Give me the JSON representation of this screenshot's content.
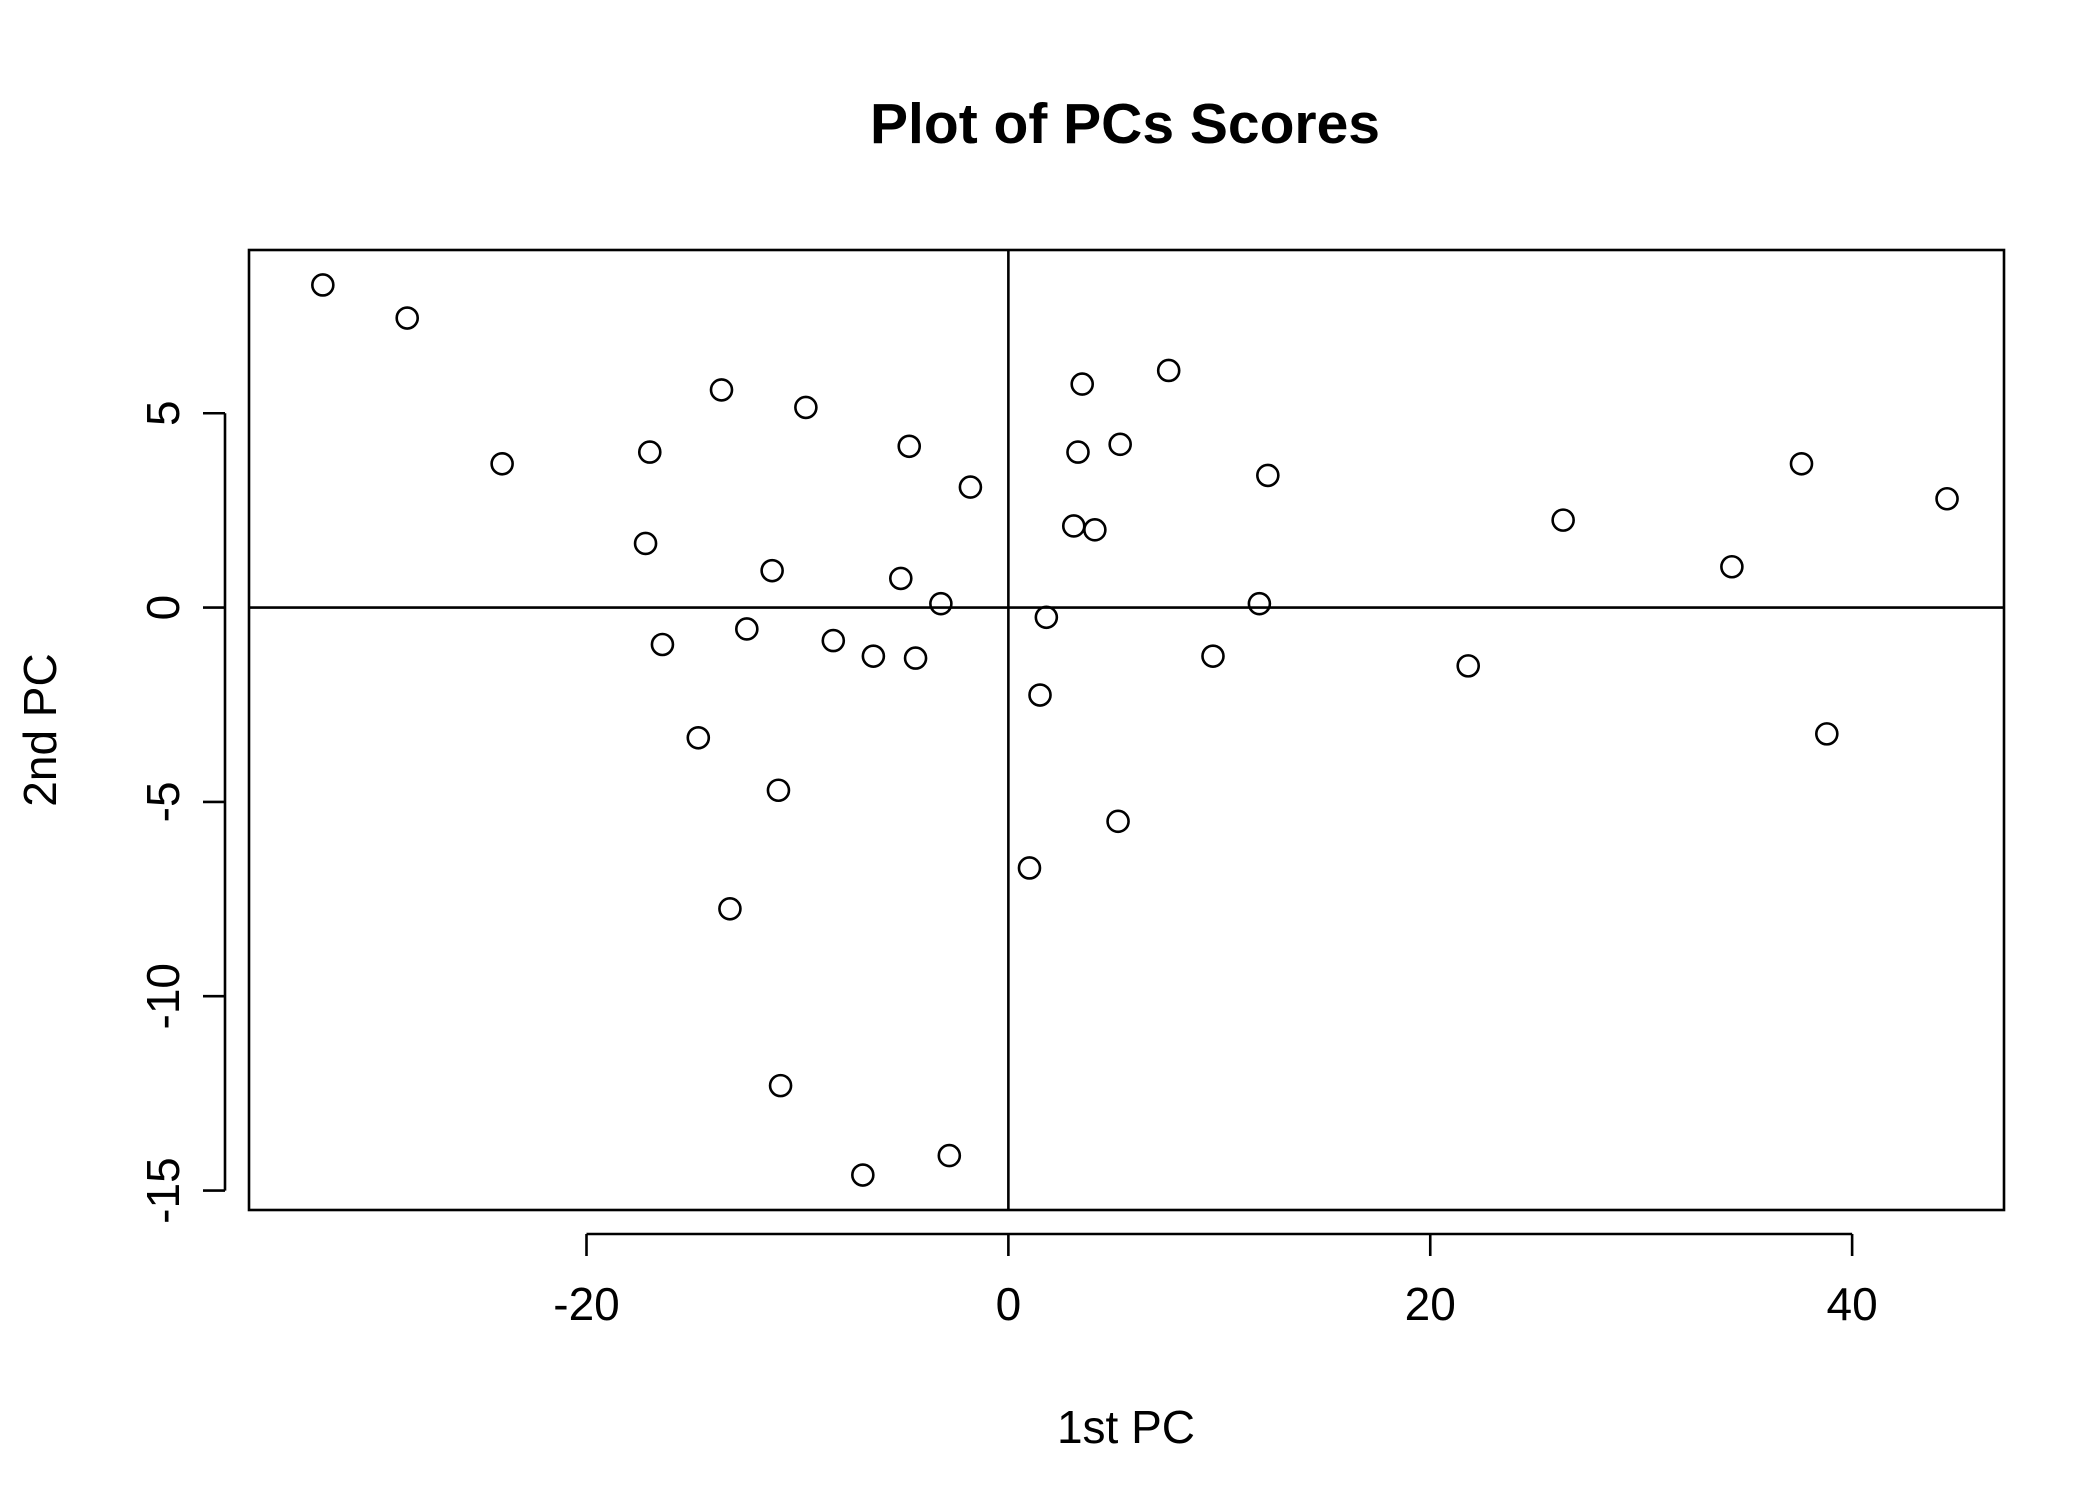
{
  "chart_data": {
    "type": "scatter",
    "title": "Plot of PCs Scores",
    "xlabel": "1st PC",
    "ylabel": "2nd PC",
    "xlim": [
      -36,
      47.2
    ],
    "ylim": [
      -15.5,
      9.2
    ],
    "xticks": [
      -20,
      0,
      20,
      40
    ],
    "yticks": [
      -15,
      -10,
      -5,
      0,
      5
    ],
    "xtick_labels": [
      "-20",
      "0",
      "20",
      "40"
    ],
    "ytick_labels": [
      "-15",
      "-10",
      "-5",
      "0",
      "5"
    ],
    "reference_lines": {
      "h": 0,
      "v": 0
    },
    "grid": false,
    "marker": "open-circle",
    "points": [
      {
        "x": -32.5,
        "y": 8.3
      },
      {
        "x": -28.5,
        "y": 7.45
      },
      {
        "x": -24.0,
        "y": 3.7
      },
      {
        "x": -17.0,
        "y": 4.0
      },
      {
        "x": -17.2,
        "y": 1.65
      },
      {
        "x": -16.4,
        "y": -0.95
      },
      {
        "x": -14.7,
        "y": -3.35
      },
      {
        "x": -13.6,
        "y": 5.6
      },
      {
        "x": -13.2,
        "y": -7.75
      },
      {
        "x": -12.4,
        "y": -0.55
      },
      {
        "x": -11.2,
        "y": 0.95
      },
      {
        "x": -10.9,
        "y": -4.7
      },
      {
        "x": -10.8,
        "y": -12.3
      },
      {
        "x": -9.6,
        "y": 5.15
      },
      {
        "x": -8.3,
        "y": -0.85
      },
      {
        "x": -6.9,
        "y": -14.6
      },
      {
        "x": -6.4,
        "y": -1.25
      },
      {
        "x": -5.1,
        "y": 0.75
      },
      {
        "x": -4.7,
        "y": 4.15
      },
      {
        "x": -4.4,
        "y": -1.3
      },
      {
        "x": -3.2,
        "y": 0.1
      },
      {
        "x": -2.8,
        "y": -14.1
      },
      {
        "x": -1.8,
        "y": 3.1
      },
      {
        "x": 1.0,
        "y": -6.7
      },
      {
        "x": 1.5,
        "y": -2.25
      },
      {
        "x": 1.8,
        "y": -0.25
      },
      {
        "x": 3.1,
        "y": 2.1
      },
      {
        "x": 3.3,
        "y": 4.0
      },
      {
        "x": 3.5,
        "y": 5.75
      },
      {
        "x": 4.1,
        "y": 2.0
      },
      {
        "x": 5.2,
        "y": -5.5
      },
      {
        "x": 5.3,
        "y": 4.2
      },
      {
        "x": 7.6,
        "y": 6.1
      },
      {
        "x": 9.7,
        "y": -1.25
      },
      {
        "x": 11.9,
        "y": 0.1
      },
      {
        "x": 12.3,
        "y": 3.4
      },
      {
        "x": 21.8,
        "y": -1.5
      },
      {
        "x": 26.3,
        "y": 2.25
      },
      {
        "x": 34.3,
        "y": 1.05
      },
      {
        "x": 37.6,
        "y": 3.7
      },
      {
        "x": 38.8,
        "y": -3.25
      },
      {
        "x": 44.5,
        "y": 2.8
      }
    ]
  }
}
